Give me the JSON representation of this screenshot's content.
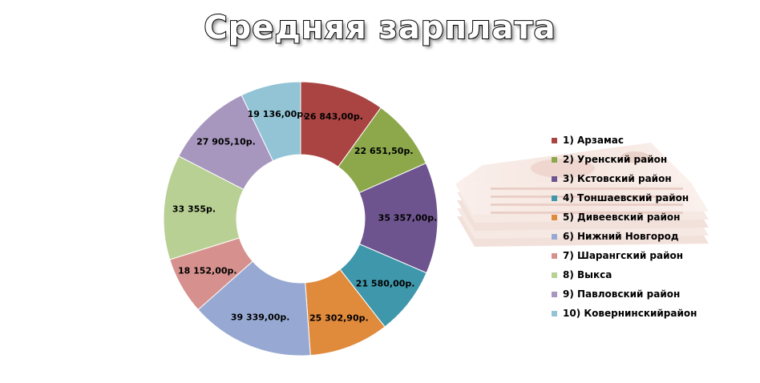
{
  "chart_data": {
    "type": "pie",
    "donut": true,
    "title": "Средняя зарплата",
    "legend_position": "right",
    "slices": [
      {
        "name": "1) Арзамас",
        "value": 26843.0,
        "label": "26 843,00р.",
        "color": "#A94442"
      },
      {
        "name": "2) Уренский район",
        "value": 22651.5,
        "label": "22 651,50р.",
        "color": "#8CA84B"
      },
      {
        "name": "3) Кстовский район",
        "value": 35357.0,
        "label": "35 357,00р.",
        "color": "#6E548F"
      },
      {
        "name": "4) Тоншаевский район",
        "value": 21580.0,
        "label": "21 580,00р.",
        "color": "#3F97AB"
      },
      {
        "name": "5) Дивеевский район",
        "value": 25302.9,
        "label": "25 302,90р.",
        "color": "#E08A3C"
      },
      {
        "name": "6) Нижний Новгород",
        "value": 39339.0,
        "label": "39 339,00р.",
        "color": "#97A9D3"
      },
      {
        "name": "7) Шарангский район",
        "value": 18152.0,
        "label": "18 152,00р.",
        "color": "#D6918E"
      },
      {
        "name": "8) Выкса",
        "value": 33355.0,
        "label": "33 355р.",
        "color": "#B8D093"
      },
      {
        "name": "9) Павловский район",
        "value": 27905.1,
        "label": "27 905,10р.",
        "color": "#A797BF"
      },
      {
        "name": "10) Ковернинскийрайон",
        "value": 19136.0,
        "label": "19 136,00р.",
        "color": "#92C4D6"
      }
    ]
  },
  "decoration": {
    "icon": "banknote-stack-icon"
  }
}
